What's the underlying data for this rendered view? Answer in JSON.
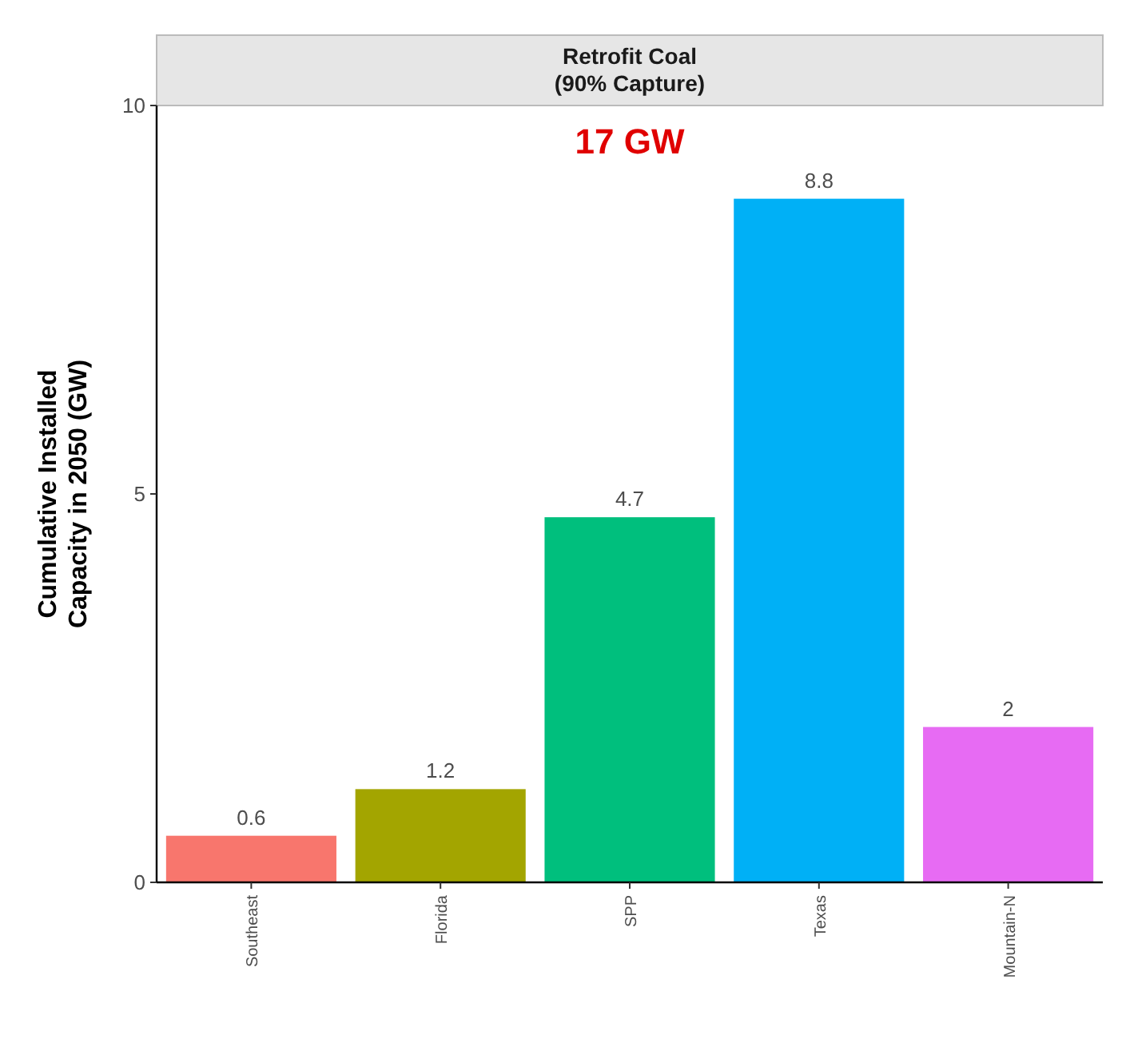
{
  "chart_data": {
    "type": "bar",
    "title": "Retrofit Coal\n(90% Capture)",
    "ylabel": "Cumulative Installed\nCapacity in 2050 (GW)",
    "categories": [
      "Southeast",
      "Florida",
      "SPP",
      "Texas",
      "Mountain-N"
    ],
    "values": [
      0.6,
      1.2,
      4.7,
      8.8,
      2
    ],
    "colors": [
      "#f8766d",
      "#a3a500",
      "#00bf7d",
      "#00b0f6",
      "#e76bf3"
    ],
    "ylim": [
      0,
      10
    ],
    "yticks": [
      0,
      5,
      10
    ],
    "grid": false,
    "data_labels": true,
    "annotations": [
      "17 GW"
    ]
  }
}
